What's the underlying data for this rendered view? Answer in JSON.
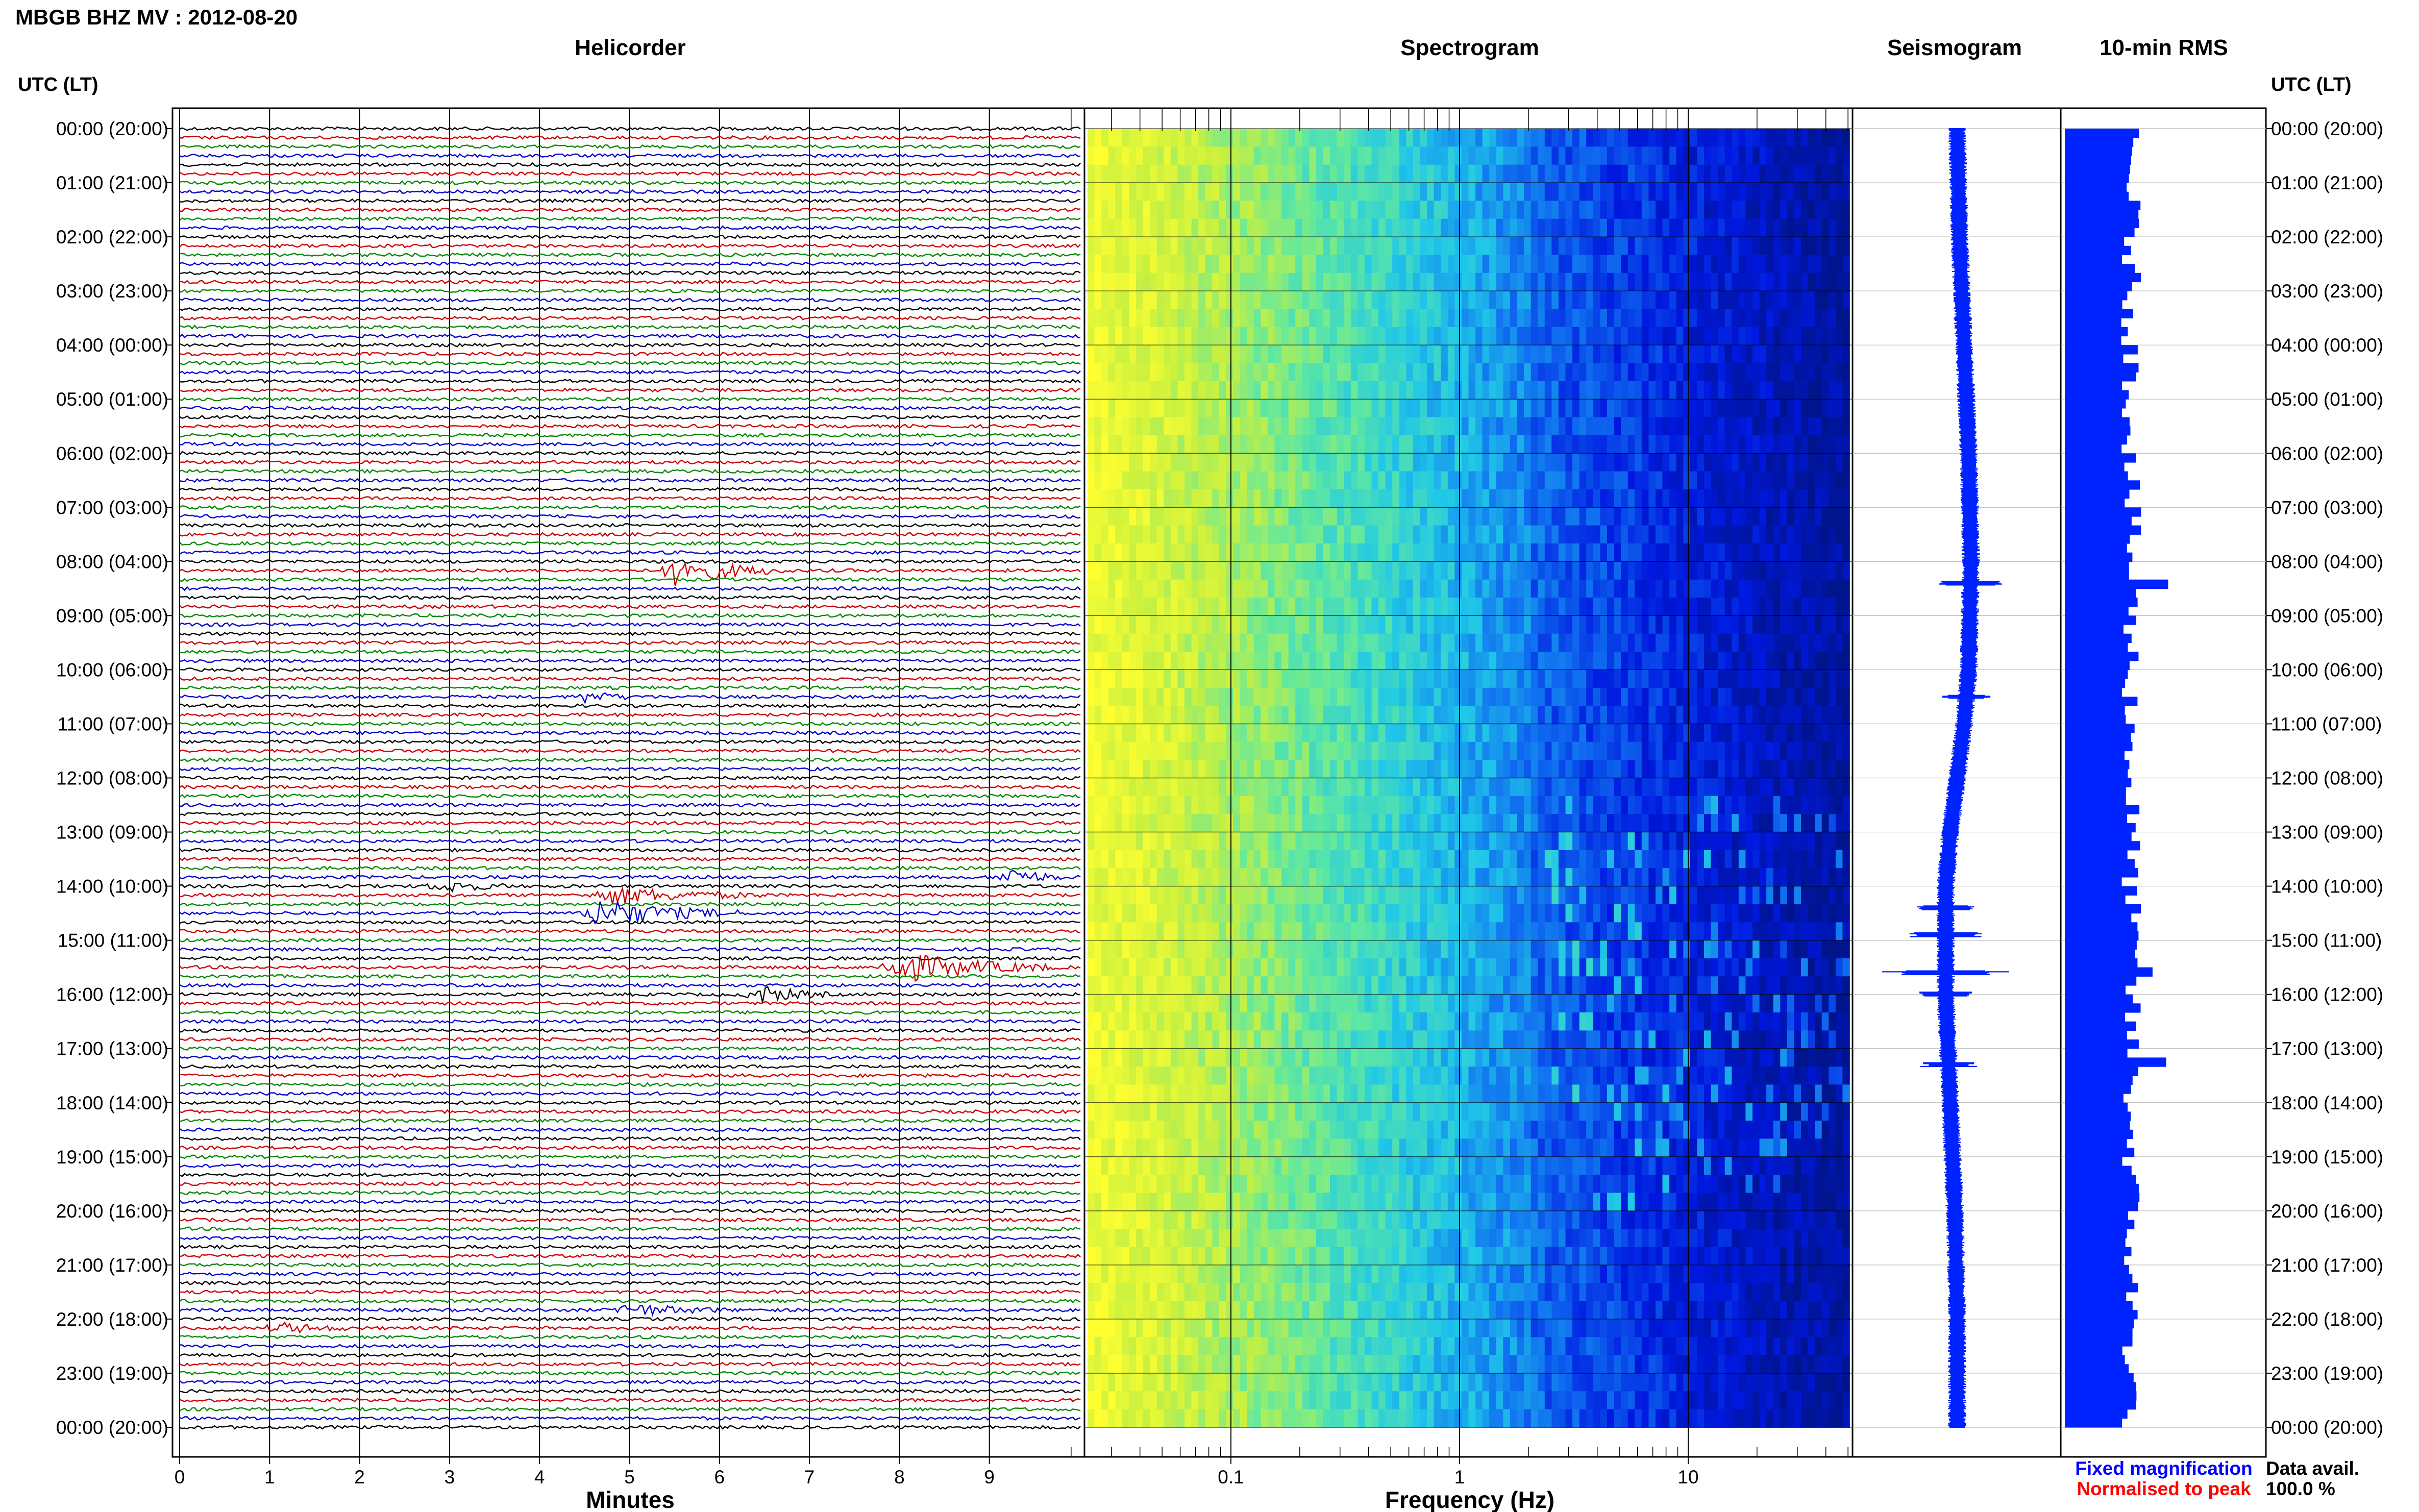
{
  "header": {
    "title": "MBGB BHZ MV : 2012-08-20"
  },
  "panels": {
    "helicorder": "Helicorder",
    "spectrogram": "Spectrogram",
    "seismogram": "Seismogram",
    "rms": "10-min RMS"
  },
  "axes": {
    "left_header": "UTC (LT)",
    "right_header": "UTC (LT)",
    "minutes_label": "Minutes",
    "frequency_label": "Frequency (Hz)",
    "minute_ticks": [
      "0",
      "1",
      "2",
      "3",
      "4",
      "5",
      "6",
      "7",
      "8",
      "9"
    ],
    "frequency_ticks": [
      "0.1",
      "1",
      "10"
    ],
    "time_labels": [
      "00:00 (20:00)",
      "01:00 (21:00)",
      "02:00 (22:00)",
      "03:00 (23:00)",
      "04:00 (00:00)",
      "05:00 (01:00)",
      "06:00 (02:00)",
      "07:00 (03:00)",
      "08:00 (04:00)",
      "09:00 (05:00)",
      "10:00 (06:00)",
      "11:00 (07:00)",
      "12:00 (08:00)",
      "13:00 (09:00)",
      "14:00 (10:00)",
      "15:00 (11:00)",
      "16:00 (12:00)",
      "17:00 (13:00)",
      "18:00 (14:00)",
      "19:00 (15:00)",
      "20:00 (16:00)",
      "21:00 (17:00)",
      "22:00 (18:00)",
      "23:00 (19:00)",
      "00:00 (20:00)"
    ]
  },
  "legend": {
    "fixed": "Fixed magnification",
    "normalised": "Normalised to peak",
    "fixed_color": "#0000ff",
    "normalised_color": "#ff0000"
  },
  "availability": {
    "label": "Data avail.",
    "value": "100.0 %"
  },
  "colors": {
    "trace_cycle": [
      "#000000",
      "#cc0000",
      "#008800",
      "#0000cc"
    ],
    "blue": "#0022ff"
  },
  "chart_data": [
    {
      "type": "line",
      "name": "helicorder",
      "title": "Helicorder",
      "xlabel": "Minutes",
      "xlim": [
        0,
        10
      ],
      "rows": 144,
      "row_minutes": 10,
      "events": [
        {
          "hour": 8.17,
          "minute": 5.5,
          "amplitude": 1.4,
          "duration": 1.2
        },
        {
          "hour": 10.5,
          "minute": 4.5,
          "amplitude": 0.5,
          "duration": 0.6
        },
        {
          "hour": 13.83,
          "minute": 9.2,
          "amplitude": 1.0,
          "duration": 0.6
        },
        {
          "hour": 14.0,
          "minute": 2.9,
          "amplitude": 0.6,
          "duration": 0.8
        },
        {
          "hour": 14.17,
          "minute": 4.7,
          "amplitude": 0.8,
          "duration": 1.8
        },
        {
          "hour": 14.5,
          "minute": 4.6,
          "amplitude": 1.4,
          "duration": 1.6
        },
        {
          "hour": 15.5,
          "minute": 7.9,
          "amplitude": 1.5,
          "duration": 1.8
        },
        {
          "hour": 16.0,
          "minute": 6.4,
          "amplitude": 0.9,
          "duration": 0.8
        },
        {
          "hour": 21.83,
          "minute": 4.9,
          "amplitude": 0.6,
          "duration": 1.2
        },
        {
          "hour": 22.17,
          "minute": 1.1,
          "amplitude": 0.5,
          "duration": 0.8
        }
      ]
    },
    {
      "type": "heatmap",
      "name": "spectrogram",
      "title": "Spectrogram",
      "xlabel": "Frequency (Hz)",
      "x_scale": "log",
      "xlim": [
        0.02,
        50
      ],
      "ylim_hours": [
        0,
        24
      ],
      "colormap": [
        "#ffff30",
        "#c8f040",
        "#60e8a0",
        "#20c8e8",
        "#1070f0",
        "#0018e0",
        "#00148c"
      ]
    },
    {
      "type": "line",
      "name": "seismogram",
      "title": "Seismogram",
      "hours": [
        0,
        2,
        4,
        6,
        8,
        10,
        11,
        12,
        13,
        14,
        15,
        16,
        17,
        18,
        20,
        22,
        24
      ],
      "offset": [
        0.0,
        0.05,
        0.15,
        0.25,
        0.3,
        0.25,
        0.15,
        0.0,
        -0.15,
        -0.25,
        -0.25,
        -0.25,
        -0.2,
        -0.15,
        -0.05,
        0.0,
        0.0
      ],
      "spikes": [
        {
          "hour": 8.4,
          "width": 0.35
        },
        {
          "hour": 10.5,
          "width": 0.25
        },
        {
          "hour": 14.4,
          "width": 0.3
        },
        {
          "hour": 14.9,
          "width": 0.45
        },
        {
          "hour": 15.6,
          "width": 0.8
        },
        {
          "hour": 16.0,
          "width": 0.3
        },
        {
          "hour": 17.3,
          "width": 0.3
        }
      ]
    },
    {
      "type": "bar",
      "name": "rms",
      "title": "10-min RMS",
      "orientation": "horizontal",
      "bins": 144,
      "baseline": 0.34,
      "peaks": [
        {
          "hour": 0.0,
          "value": 0.38
        },
        {
          "hour": 8.4,
          "value": 0.53
        },
        {
          "hour": 15.5,
          "value": 0.45
        },
        {
          "hour": 17.2,
          "value": 0.52
        }
      ]
    }
  ]
}
